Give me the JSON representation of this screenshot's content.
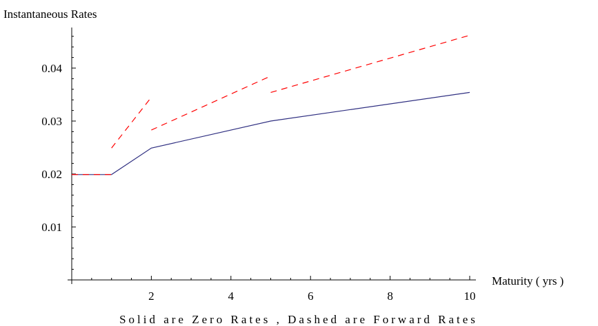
{
  "chart_data": {
    "type": "line",
    "ylabel": "Instantaneous   Rates",
    "xlabel": "Maturity  ( yrs )",
    "caption": "Solid are Zero Rates , Dashed are Forward Rates",
    "xlim": [
      0,
      10
    ],
    "ylim": [
      0,
      0.046
    ],
    "x_ticks": [
      2,
      4,
      6,
      8,
      10
    ],
    "x_tick_labels": [
      "2",
      "4",
      "6",
      "8",
      "10"
    ],
    "y_ticks": [
      0.01,
      0.02,
      0.03,
      0.04
    ],
    "y_tick_labels": [
      "0.01",
      "0.02",
      "0.03",
      "0.04"
    ],
    "grid": false,
    "series": [
      {
        "style": "solid",
        "color": "#2e2e80",
        "points": [
          [
            0,
            0.0199
          ],
          [
            1,
            0.0199
          ],
          [
            2,
            0.0249
          ],
          [
            5,
            0.03
          ],
          [
            10,
            0.0354
          ]
        ]
      },
      {
        "style": "dashed",
        "color": "#ff0000",
        "segments": [
          [
            [
              0,
              0.0199
            ],
            [
              1,
              0.0199
            ]
          ],
          [
            [
              1,
              0.0249
            ],
            [
              2,
              0.0345
            ]
          ],
          [
            [
              2,
              0.0283
            ],
            [
              5,
              0.0385
            ]
          ],
          [
            [
              5,
              0.0354
            ],
            [
              10,
              0.0462
            ]
          ]
        ]
      }
    ]
  }
}
